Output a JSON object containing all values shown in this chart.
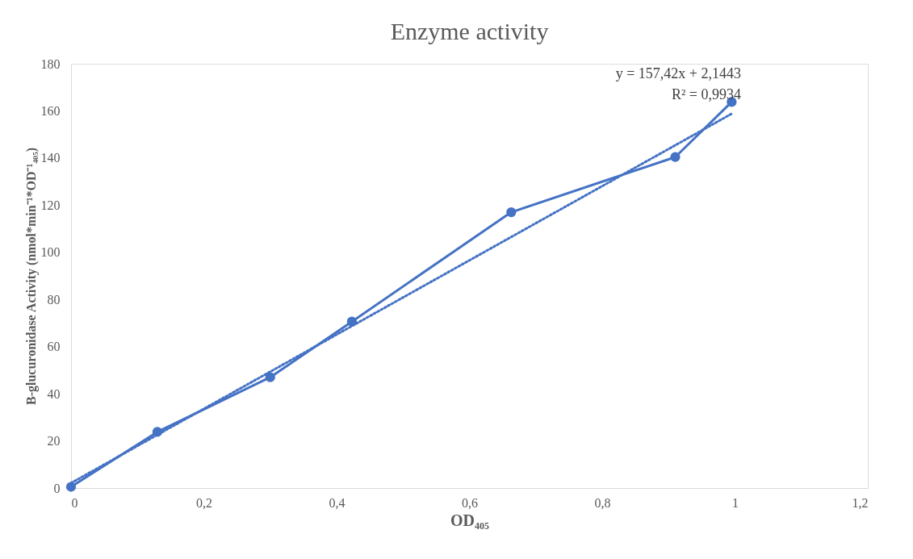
{
  "chart_data": {
    "type": "line",
    "title": "Enzyme activity",
    "xlabel": "OD₄₀₅",
    "ylabel": "B-glucuronidase Activity (nmol*min⁻¹*OD⁻¹₄₀₅)",
    "x": [
      0,
      0.13,
      0.3,
      0.423,
      0.663,
      0.91,
      0.995
    ],
    "series": [
      {
        "color": "#4472c4",
        "values": [
          0.5,
          23.8,
          47,
          70.6,
          117,
          140.4,
          163.8
        ],
        "marker": "circle",
        "line_style": "solid"
      },
      {
        "type": "line",
        "color": "#4472c4",
        "x": [
          0,
          0.995
        ],
        "values": [
          2.1,
          158.8
        ],
        "marker": "none",
        "line_style": "dotted"
      }
    ],
    "xlim": [
      0,
      1.2
    ],
    "xticks": [
      0,
      {
        "value": 0.2,
        "label": "0,2"
      },
      {
        "value": 0.4,
        "label": "0,4"
      },
      {
        "value": 0.6,
        "label": "0,6"
      },
      {
        "value": 0.8,
        "label": "0,8"
      },
      1,
      {
        "value": 1.2,
        "label": "1,2"
      }
    ],
    "ylim": [
      0,
      180
    ],
    "yticks": [
      0,
      20,
      40,
      60,
      80,
      100,
      120,
      140,
      160,
      180
    ],
    "grid": false,
    "legend": false,
    "annotations": [
      "y = 157,42x + 2,1443",
      "R² = 0,9934"
    ]
  }
}
